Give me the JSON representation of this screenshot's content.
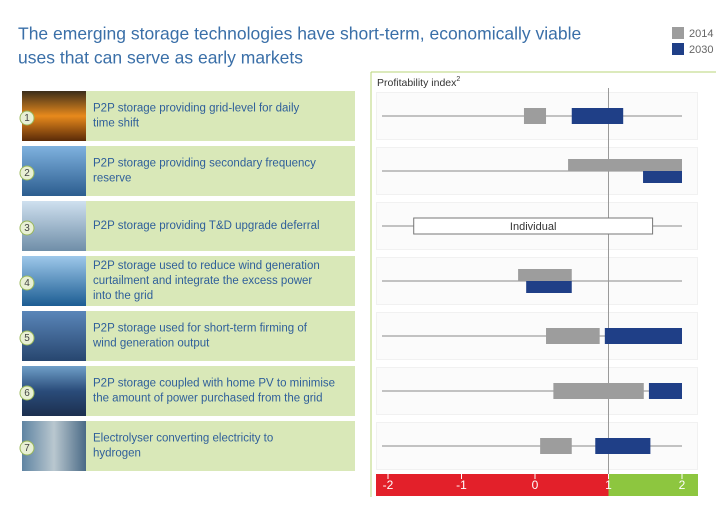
{
  "chart_data": {
    "type": "range-bar",
    "title": [
      "The emerging storage technologies have short-term, economically viable",
      "uses that can serve as early markets"
    ],
    "x_label": "Profitability index",
    "x_label_sup": "2",
    "row_numbers": [
      1,
      2,
      3,
      4,
      5,
      6,
      7
    ],
    "categories": [
      "P2P storage providing grid-level for daily time shift",
      "P2P storage providing secondary frequency reserve",
      "P2P storage providing T&D upgrade deferral",
      "P2P storage used to reduce wind generation curtailment and integrate the excess power into the grid",
      "P2P storage used for short-term firming of wind generation output",
      "P2P storage coupled with home PV to minimise the amount of power purchased from the grid",
      "Electrolyser converting electricity to hydrogen"
    ],
    "series": [
      {
        "name": "2014",
        "color": "#9d9d9d",
        "low": [
          -0.15,
          0.45,
          null,
          -0.23,
          0.15,
          0.25,
          0.07
        ],
        "high": [
          0.15,
          2,
          null,
          0.5,
          0.88,
          1.48,
          0.5
        ]
      },
      {
        "name": "2030",
        "color": "#1f3f87",
        "low": [
          0.5,
          1.47,
          null,
          -0.12,
          0.95,
          1.55,
          0.82
        ],
        "high": [
          1.2,
          2,
          null,
          0.5,
          2,
          2,
          1.57
        ]
      }
    ],
    "annotations": [
      {
        "text": "Individual",
        "category": "P2P storage providing T&D upgrade deferral",
        "low": -1.65,
        "high": 1.6
      }
    ],
    "xlim": [
      -2,
      2
    ],
    "xticks": [
      -2,
      -1,
      0,
      1,
      2
    ],
    "threshold": 1,
    "negative_color": "#e3202a",
    "positive_color": "#8dc63f"
  }
}
